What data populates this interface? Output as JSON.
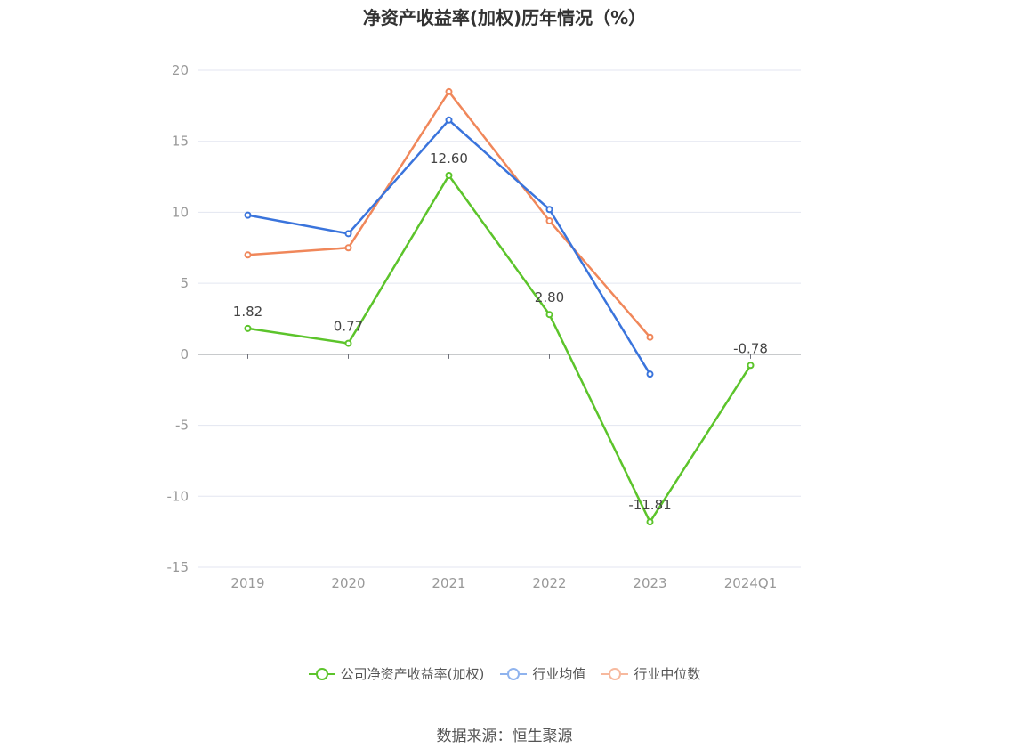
{
  "chart_data": {
    "type": "line",
    "title": "净资产收益率(加权)历年情况（%）",
    "categories": [
      "2019",
      "2020",
      "2021",
      "2022",
      "2023",
      "2024Q1"
    ],
    "ylim": [
      -15,
      20
    ],
    "yticks": [
      20,
      15,
      10,
      5,
      0,
      -5,
      -10,
      -15
    ],
    "grid": true,
    "legend_position": "bottom-center",
    "series": [
      {
        "name": "公司净资产收益率(加权)",
        "color": "#5cc42b",
        "values": [
          1.82,
          0.77,
          12.6,
          2.8,
          -11.81,
          -0.78
        ],
        "labels": [
          "1.82",
          "0.77",
          "12.60",
          "2.80",
          "-11.81",
          "-0.78"
        ]
      },
      {
        "name": "行业均值",
        "color": "#3a74dc",
        "values": [
          9.8,
          8.5,
          16.5,
          10.2,
          -1.4,
          null
        ]
      },
      {
        "name": "行业中位数",
        "color": "#f0875a",
        "values": [
          7.0,
          7.5,
          18.5,
          9.4,
          1.2,
          null
        ]
      }
    ]
  },
  "legend": {
    "items": [
      {
        "label": "公司净资产收益率(加权)",
        "color": "#5cc42b"
      },
      {
        "label": "行业均值",
        "color": "#8fb3ee"
      },
      {
        "label": "行业中位数",
        "color": "#f7b99e"
      }
    ]
  },
  "source": "数据来源：恒生聚源"
}
